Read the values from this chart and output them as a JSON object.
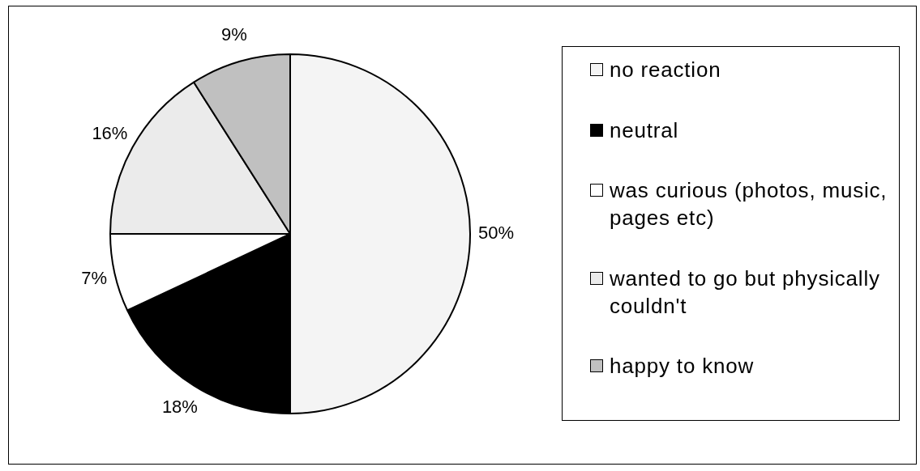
{
  "chart_data": {
    "type": "pie",
    "categories": [
      "no reaction",
      "neutral",
      "was curious (photos, music, pages etc)",
      "wanted to go but physically couldn't",
      "happy to know"
    ],
    "values": [
      50,
      18,
      7,
      16,
      9
    ],
    "colors": [
      "#f4f4f4",
      "#000000",
      "#ffffff",
      "#ebebeb",
      "#c0c0c0"
    ],
    "value_labels": [
      "50%",
      "18%",
      "7%",
      "16%",
      "9%"
    ],
    "legend": "right"
  }
}
